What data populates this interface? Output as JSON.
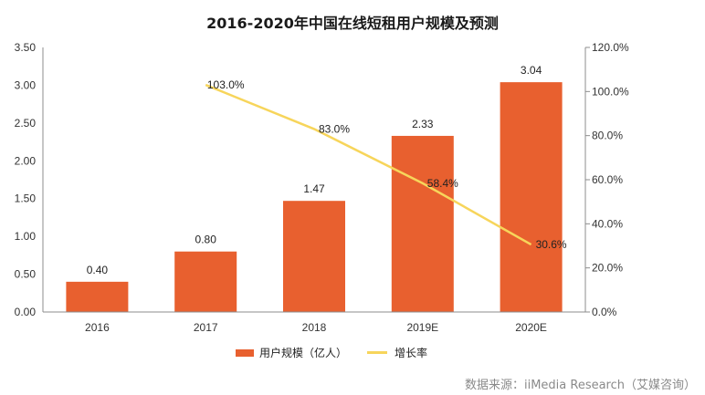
{
  "chart_data": {
    "type": "bar",
    "title": "2016-2020年中国在线短租用户规模及预测",
    "categories": [
      "2016",
      "2017",
      "2018",
      "2019E",
      "2020E"
    ],
    "series": [
      {
        "name": "用户规模（亿人）",
        "type": "bar",
        "axis": "left",
        "color": "#E8602F",
        "values": [
          0.4,
          0.8,
          1.47,
          2.33,
          3.04
        ],
        "labels": [
          "0.40",
          "0.80",
          "1.47",
          "2.33",
          "3.04"
        ]
      },
      {
        "name": "增长率",
        "type": "line",
        "axis": "right",
        "color": "#F7D55B",
        "values": [
          null,
          103.0,
          83.0,
          58.4,
          30.6
        ],
        "labels": [
          "",
          "103.0%",
          "83.0%",
          "58.4%",
          "30.6%"
        ]
      }
    ],
    "y_left": {
      "min": 0,
      "max": 3.5,
      "ticks": [
        "0.00",
        "0.50",
        "1.00",
        "1.50",
        "2.00",
        "2.50",
        "3.00",
        "3.50"
      ]
    },
    "y_right": {
      "min": 0,
      "max": 120,
      "ticks": [
        "0.0%",
        "20.0%",
        "40.0%",
        "60.0%",
        "80.0%",
        "100.0%",
        "120.0%"
      ]
    },
    "grid": false,
    "legend": "bottom"
  },
  "source": "数据来源：iiMedia Research（艾媒咨询）"
}
